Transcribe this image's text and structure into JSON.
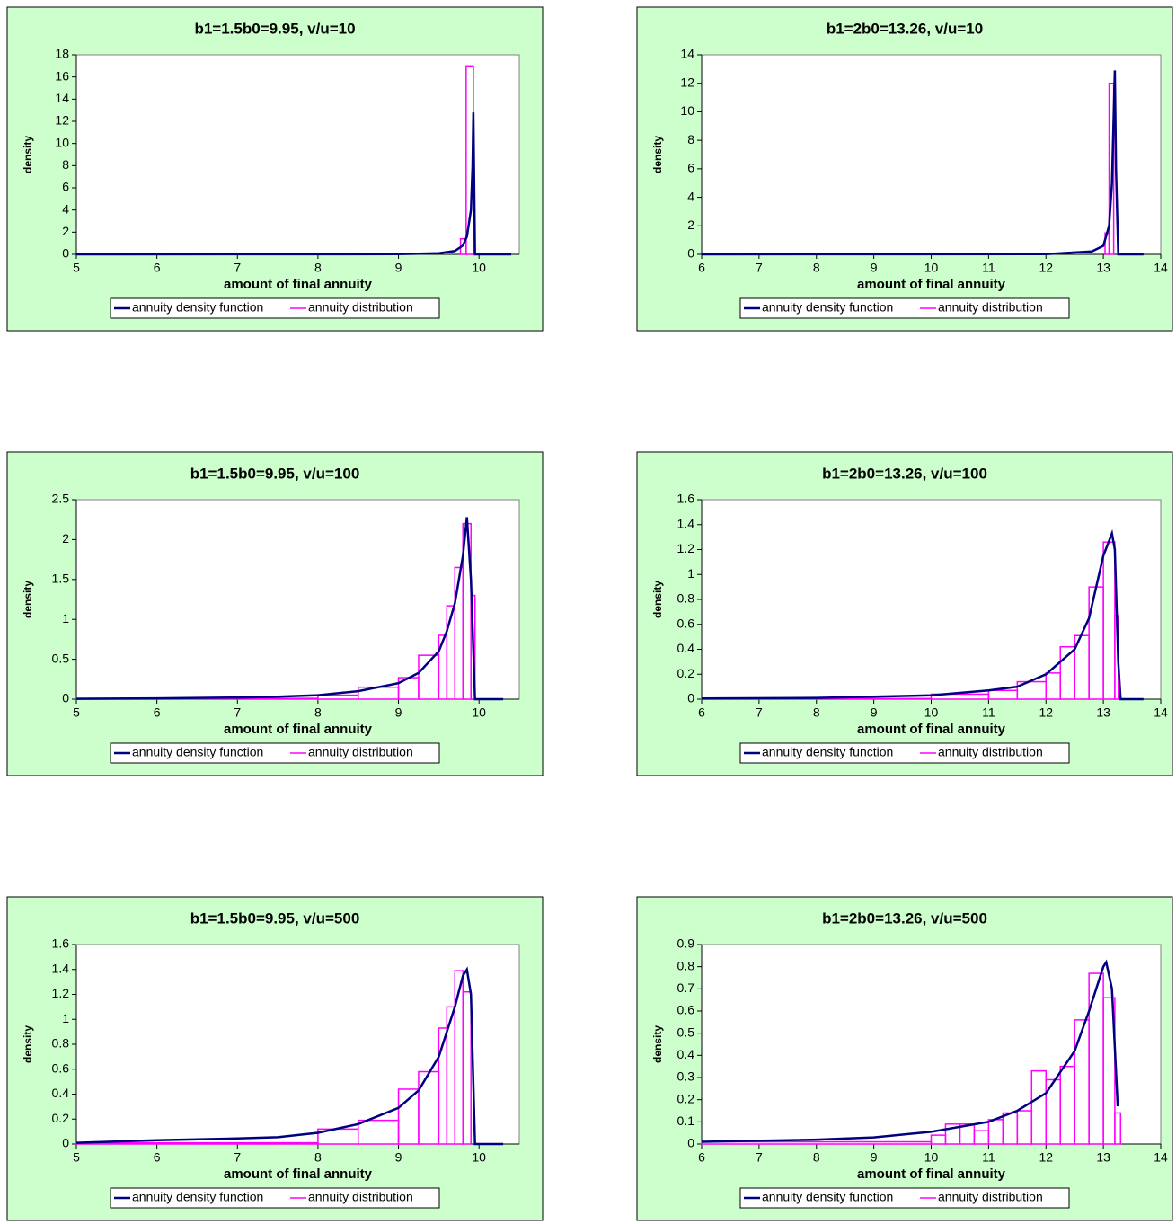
{
  "chart_data": [
    {
      "type": "line",
      "title": "b1=1.5b0=9.95, v/u=10",
      "xlabel": "amount of final annuity",
      "ylabel": "density",
      "xlim": [
        5,
        10.5
      ],
      "xticks": [
        5,
        6,
        7,
        8,
        9,
        10
      ],
      "ylim": [
        0,
        18
      ],
      "yticks": [
        0,
        2,
        4,
        6,
        8,
        10,
        12,
        14,
        16,
        18
      ],
      "series": [
        {
          "name": "annuity density function",
          "color": "#000080",
          "x": [
            5,
            9,
            9.5,
            9.7,
            9.8,
            9.85,
            9.9,
            9.92,
            9.93,
            9.95,
            10,
            10.4
          ],
          "values": [
            0,
            0.02,
            0.1,
            0.3,
            0.8,
            1.6,
            4,
            8,
            12.8,
            0,
            0,
            0
          ]
        },
        {
          "name": "annuity distribution",
          "type": "histogram",
          "color": "#ff00ff",
          "bins": [
            5,
            9.77,
            9.84,
            9.93
          ],
          "values": [
            0,
            1.4,
            17
          ]
        }
      ]
    },
    {
      "type": "line",
      "title": "b1=2b0=13.26, v/u=10",
      "xlabel": "amount of final annuity",
      "ylabel": "density",
      "xlim": [
        6,
        14
      ],
      "xticks": [
        6,
        7,
        8,
        9,
        10,
        11,
        12,
        13,
        14
      ],
      "ylim": [
        0,
        14
      ],
      "yticks": [
        0,
        2,
        4,
        6,
        8,
        10,
        12,
        14
      ],
      "series": [
        {
          "name": "annuity density function",
          "color": "#000080",
          "x": [
            6,
            12,
            12.8,
            13,
            13.1,
            13.15,
            13.2,
            13.22,
            13.26,
            13.7
          ],
          "values": [
            0,
            0.02,
            0.2,
            0.6,
            2,
            5,
            12.9,
            6,
            0,
            0
          ]
        },
        {
          "name": "annuity distribution",
          "type": "histogram",
          "color": "#ff00ff",
          "bins": [
            6,
            13.03,
            13.1,
            13.18
          ],
          "values": [
            0,
            1.5,
            12
          ]
        }
      ]
    },
    {
      "type": "line",
      "title": "b1=1.5b0=9.95, v/u=100",
      "xlabel": "amount of final annuity",
      "ylabel": "density",
      "xlim": [
        5,
        10.5
      ],
      "xticks": [
        5,
        6,
        7,
        8,
        9,
        10
      ],
      "ylim": [
        0,
        2.5
      ],
      "yticks": [
        0,
        0.5,
        1,
        1.5,
        2,
        2.5
      ],
      "series": [
        {
          "name": "annuity density function",
          "color": "#000080",
          "x": [
            5,
            6,
            7,
            7.5,
            8,
            8.5,
            9,
            9.25,
            9.5,
            9.6,
            9.7,
            9.8,
            9.85,
            9.9,
            9.95,
            10.3
          ],
          "values": [
            0.005,
            0.01,
            0.02,
            0.03,
            0.05,
            0.1,
            0.2,
            0.33,
            0.6,
            0.85,
            1.2,
            1.8,
            2.28,
            1.5,
            0,
            0
          ]
        },
        {
          "name": "annuity distribution",
          "type": "histogram",
          "color": "#ff00ff",
          "bins": [
            5,
            8,
            8.5,
            9,
            9.25,
            9.5,
            9.6,
            9.7,
            9.8,
            9.9,
            9.95
          ],
          "values": [
            0.01,
            0.05,
            0.15,
            0.27,
            0.55,
            0.8,
            1.17,
            1.65,
            2.2,
            1.3
          ]
        }
      ]
    },
    {
      "type": "line",
      "title": "b1=2b0=13.26, v/u=100",
      "xlabel": "amount of final annuity",
      "ylabel": "density",
      "xlim": [
        6,
        14
      ],
      "xticks": [
        6,
        7,
        8,
        9,
        10,
        11,
        12,
        13,
        14
      ],
      "ylim": [
        0,
        1.6
      ],
      "yticks": [
        0,
        0.2,
        0.4,
        0.6,
        0.8,
        1,
        1.2,
        1.4,
        1.6
      ],
      "series": [
        {
          "name": "annuity density function",
          "color": "#000080",
          "x": [
            6,
            8,
            10,
            11,
            11.5,
            12,
            12.5,
            12.75,
            13,
            13.15,
            13.2,
            13.26,
            13.3,
            13.7
          ],
          "values": [
            0.005,
            0.01,
            0.03,
            0.07,
            0.1,
            0.2,
            0.4,
            0.65,
            1.15,
            1.33,
            1.2,
            0.3,
            0,
            0
          ]
        },
        {
          "name": "annuity distribution",
          "type": "histogram",
          "color": "#ff00ff",
          "bins": [
            6,
            10,
            11,
            11.5,
            12,
            12.25,
            12.5,
            12.75,
            13,
            13.2,
            13.26
          ],
          "values": [
            0.005,
            0.04,
            0.07,
            0.14,
            0.21,
            0.42,
            0.51,
            0.9,
            1.26,
            0.67
          ]
        }
      ]
    },
    {
      "type": "line",
      "title": "b1=1.5b0=9.95, v/u=500",
      "xlabel": "amount of final annuity",
      "ylabel": "density",
      "xlim": [
        5,
        10.5
      ],
      "xticks": [
        5,
        6,
        7,
        8,
        9,
        10
      ],
      "ylim": [
        0,
        1.6
      ],
      "yticks": [
        0,
        0.2,
        0.4,
        0.6,
        0.8,
        1,
        1.2,
        1.4,
        1.6
      ],
      "series": [
        {
          "name": "annuity density function",
          "color": "#000080",
          "x": [
            5,
            6,
            7,
            7.5,
            8,
            8.5,
            9,
            9.25,
            9.5,
            9.7,
            9.8,
            9.85,
            9.9,
            9.95,
            10.3
          ],
          "values": [
            0.01,
            0.03,
            0.045,
            0.055,
            0.09,
            0.16,
            0.29,
            0.43,
            0.7,
            1.1,
            1.35,
            1.4,
            1.2,
            0,
            0
          ]
        },
        {
          "name": "annuity distribution",
          "type": "histogram",
          "color": "#ff00ff",
          "bins": [
            5,
            8,
            8.5,
            9,
            9.25,
            9.5,
            9.6,
            9.7,
            9.8,
            9.9
          ],
          "values": [
            0.01,
            0.12,
            0.19,
            0.44,
            0.58,
            0.93,
            1.1,
            1.39,
            1.22
          ]
        }
      ]
    },
    {
      "type": "line",
      "title": "b1=2b0=13.26, v/u=500",
      "xlabel": "amount of final annuity",
      "ylabel": "density",
      "xlim": [
        6,
        14
      ],
      "xticks": [
        6,
        7,
        8,
        9,
        10,
        11,
        12,
        13,
        14
      ],
      "ylim": [
        0,
        0.9
      ],
      "yticks": [
        0,
        0.1,
        0.2,
        0.3,
        0.4,
        0.5,
        0.6,
        0.7,
        0.8,
        0.9
      ],
      "series": [
        {
          "name": "annuity density function",
          "color": "#000080",
          "x": [
            6,
            8,
            9,
            10,
            11,
            11.5,
            12,
            12.5,
            12.75,
            13,
            13.05,
            13.15,
            13.25
          ],
          "values": [
            0.01,
            0.02,
            0.03,
            0.055,
            0.1,
            0.15,
            0.23,
            0.42,
            0.6,
            0.8,
            0.82,
            0.7,
            0.17
          ]
        },
        {
          "name": "annuity distribution",
          "type": "histogram",
          "color": "#ff00ff",
          "bins": [
            6,
            10,
            10.25,
            10.5,
            10.75,
            11,
            11.25,
            11.5,
            11.75,
            12,
            12.25,
            12.5,
            12.75,
            13,
            13.2,
            13.3
          ],
          "values": [
            0.01,
            0.04,
            0.09,
            0.09,
            0.06,
            0.11,
            0.14,
            0.15,
            0.33,
            0.29,
            0.35,
            0.56,
            0.77,
            0.66,
            0.14
          ]
        }
      ]
    }
  ]
}
